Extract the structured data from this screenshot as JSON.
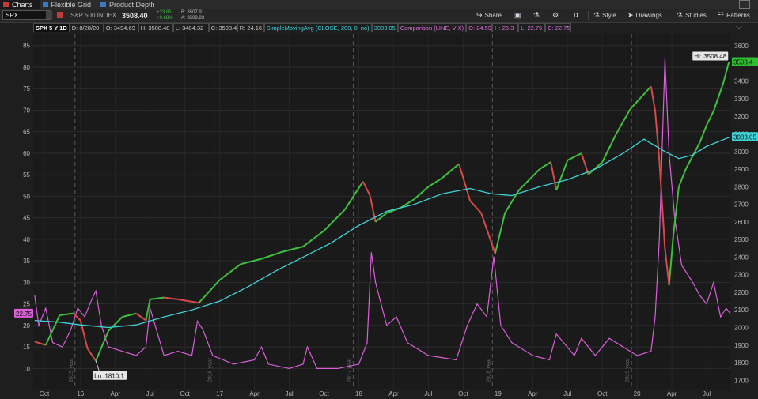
{
  "tabs": [
    {
      "label": "Charts",
      "active": true
    },
    {
      "label": "Flexible Grid",
      "active": false
    },
    {
      "label": "Product Depth",
      "active": false
    }
  ],
  "toolbar": {
    "symbol": "SPX",
    "description": "S&P 500 INDEX",
    "last": "3508.40",
    "change_pts": "+23.85",
    "change_pct": "+0.68%",
    "bid": "B: 3507.91",
    "ask": "A: 3508.83",
    "share_label": "Share",
    "timeframe_label": "D",
    "style_label": "Style",
    "drawings_label": "Drawings",
    "studies_label": "Studies",
    "patterns_label": "Patterns"
  },
  "studybar": {
    "aggregation": "SPX 5 Y 1D",
    "date": "D: 8/28/20",
    "open": "O: 3494.69",
    "high": "H: 3508.48",
    "low": "L: 3484.32",
    "close": "C: 3508.4",
    "range": "R: 24.16",
    "sma_label": "SimpleMovingAvg (CLOSE, 200, 0, no)",
    "sma_value": "3083.05",
    "comparison_label": "Comparison (LINE, VIX)",
    "cmp_open": "O: 24.59",
    "cmp_high": "H: 26.3",
    "cmp_low": "L: 22.75",
    "cmp_close": "C: 22.75"
  },
  "chart_data": {
    "type": "line",
    "symbol": "SPX",
    "left_axis": {
      "ticks": [
        10,
        15,
        20,
        25,
        30,
        35,
        40,
        45,
        50,
        55,
        60,
        65,
        70,
        75,
        80,
        85
      ],
      "range": [
        5.3,
        87.7
      ],
      "series": "VIX"
    },
    "right_axis": {
      "ticks": [
        1700,
        1800,
        1900,
        2000,
        2100,
        2200,
        2300,
        2400,
        2500,
        2600,
        2700,
        2800,
        2900,
        3000,
        3100,
        3200,
        3300,
        3400,
        3500,
        3600
      ],
      "range": [
        1652,
        3668
      ],
      "series": "SPX"
    },
    "x_labels": [
      {
        "t": 2015.74,
        "label": "Oct"
      },
      {
        "t": 2016.0,
        "label": "16"
      },
      {
        "t": 2016.25,
        "label": "Apr"
      },
      {
        "t": 2016.5,
        "label": "Jul"
      },
      {
        "t": 2016.75,
        "label": "Oct"
      },
      {
        "t": 2017.0,
        "label": "17"
      },
      {
        "t": 2017.25,
        "label": "Apr"
      },
      {
        "t": 2017.5,
        "label": "Jul"
      },
      {
        "t": 2017.75,
        "label": "Oct"
      },
      {
        "t": 2018.0,
        "label": "18"
      },
      {
        "t": 2018.25,
        "label": "Apr"
      },
      {
        "t": 2018.5,
        "label": "Jul"
      },
      {
        "t": 2018.75,
        "label": "Oct"
      },
      {
        "t": 2019.0,
        "label": "19"
      },
      {
        "t": 2019.25,
        "label": "Apr"
      },
      {
        "t": 2019.5,
        "label": "Jul"
      },
      {
        "t": 2019.75,
        "label": "Oct"
      },
      {
        "t": 2020.0,
        "label": "20"
      },
      {
        "t": 2020.25,
        "label": "Apr"
      },
      {
        "t": 2020.5,
        "label": "Jul"
      }
    ],
    "year_markers": [
      {
        "t": 2015.96,
        "label": "2015 year"
      },
      {
        "t": 2016.96,
        "label": "2016 year"
      },
      {
        "t": 2017.96,
        "label": "2017 year"
      },
      {
        "t": 2018.96,
        "label": "2018 year"
      },
      {
        "t": 2019.96,
        "label": "2019 year"
      }
    ],
    "x_range": [
      2015.66,
      2020.67
    ],
    "spx": {
      "t": [
        2015.67,
        2015.75,
        2015.85,
        2015.95,
        2016.0,
        2016.05,
        2016.11,
        2016.2,
        2016.3,
        2016.4,
        2016.47,
        2016.5,
        2016.6,
        2016.7,
        2016.85,
        2016.92,
        2017.0,
        2017.15,
        2017.3,
        2017.45,
        2017.6,
        2017.75,
        2017.9,
        2018.03,
        2018.08,
        2018.12,
        2018.2,
        2018.3,
        2018.4,
        2018.5,
        2018.6,
        2018.72,
        2018.8,
        2018.88,
        2018.98,
        2019.05,
        2019.15,
        2019.3,
        2019.38,
        2019.42,
        2019.5,
        2019.6,
        2019.65,
        2019.75,
        2019.85,
        2019.95,
        2020.1,
        2020.13,
        2020.16,
        2020.2,
        2020.23,
        2020.26,
        2020.3,
        2020.35,
        2020.45,
        2020.5,
        2020.55,
        2020.62,
        2020.66
      ],
      "v": [
        1920,
        1900,
        2070,
        2080,
        2040,
        1880,
        1810,
        1980,
        2060,
        2080,
        2040,
        2160,
        2170,
        2160,
        2140,
        2200,
        2270,
        2360,
        2390,
        2430,
        2460,
        2550,
        2670,
        2830,
        2750,
        2600,
        2650,
        2680,
        2730,
        2800,
        2850,
        2930,
        2720,
        2650,
        2420,
        2650,
        2780,
        2900,
        2940,
        2780,
        2950,
        2990,
        2870,
        2940,
        3100,
        3240,
        3370,
        3230,
        2950,
        2450,
        2240,
        2520,
        2800,
        2900,
        3050,
        3150,
        3230,
        3390,
        3508.4
      ],
      "hi": {
        "value": "3508.48",
        "label": "Hi: 3508.48"
      },
      "lo": {
        "value": "1810.1",
        "label": "Lo: 1810.1"
      },
      "last_label": "3508.4"
    },
    "sma200": {
      "t": [
        2015.67,
        2015.85,
        2016.0,
        2016.2,
        2016.4,
        2016.6,
        2016.8,
        2017.0,
        2017.2,
        2017.4,
        2017.6,
        2017.8,
        2018.0,
        2018.2,
        2018.4,
        2018.6,
        2018.8,
        2018.95,
        2019.1,
        2019.3,
        2019.5,
        2019.7,
        2019.9,
        2020.05,
        2020.2,
        2020.3,
        2020.4,
        2020.5,
        2020.67
      ],
      "v": [
        2040,
        2030,
        2015,
        2000,
        2015,
        2060,
        2100,
        2150,
        2230,
        2320,
        2400,
        2480,
        2580,
        2660,
        2700,
        2760,
        2790,
        2760,
        2750,
        2800,
        2840,
        2900,
        2990,
        3070,
        3000,
        2960,
        2980,
        3030,
        3083.05
      ],
      "last_label": "3083.05"
    },
    "vix": {
      "t": [
        2015.67,
        2015.7,
        2015.75,
        2015.8,
        2015.87,
        2015.93,
        2015.98,
        2016.03,
        2016.08,
        2016.11,
        2016.15,
        2016.2,
        2016.3,
        2016.4,
        2016.47,
        2016.5,
        2016.6,
        2016.7,
        2016.8,
        2016.84,
        2016.88,
        2016.95,
        2017.1,
        2017.25,
        2017.3,
        2017.35,
        2017.5,
        2017.6,
        2017.63,
        2017.7,
        2017.85,
        2018.0,
        2018.06,
        2018.09,
        2018.12,
        2018.2,
        2018.27,
        2018.35,
        2018.5,
        2018.7,
        2018.78,
        2018.85,
        2018.92,
        2018.97,
        2019.02,
        2019.1,
        2019.25,
        2019.37,
        2019.42,
        2019.55,
        2019.6,
        2019.7,
        2019.8,
        2019.95,
        2020.0,
        2020.1,
        2020.13,
        2020.16,
        2020.2,
        2020.23,
        2020.27,
        2020.32,
        2020.4,
        2020.45,
        2020.5,
        2020.55,
        2020.6,
        2020.64,
        2020.67
      ],
      "v": [
        27,
        20,
        24,
        16,
        15,
        19,
        24,
        22,
        26,
        28,
        20,
        15,
        14,
        13,
        15,
        24,
        13,
        14,
        13,
        21,
        19,
        13,
        11,
        12,
        15,
        11,
        10,
        11,
        15,
        10,
        10,
        11,
        16,
        37,
        30,
        20,
        22,
        16,
        13,
        12,
        20,
        25,
        22,
        36,
        20,
        16,
        13,
        12,
        18,
        13,
        17,
        13,
        17,
        14,
        13,
        14,
        22,
        40,
        82,
        60,
        45,
        34,
        30,
        27,
        25,
        30,
        22,
        24,
        22.75
      ],
      "last_label": "22.75"
    }
  }
}
